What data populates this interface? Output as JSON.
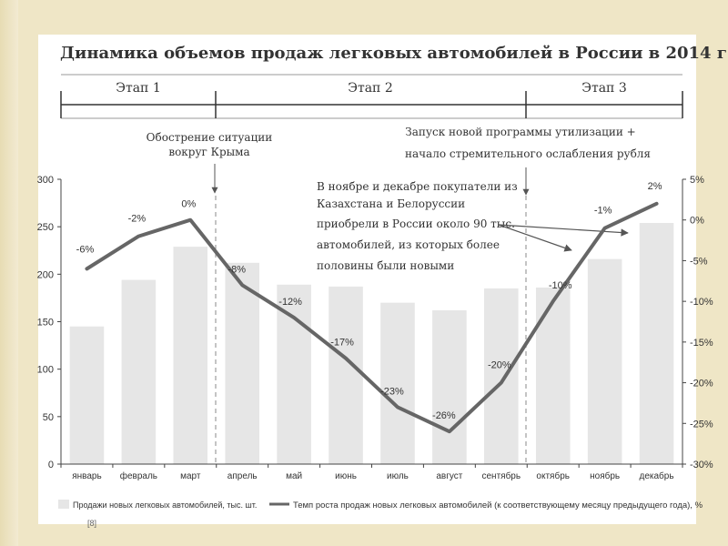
{
  "slide": {
    "title": "Динамика объемов продаж легковых автомобилей в России в 2014 г.",
    "footnote": "[8]"
  },
  "stages": [
    {
      "label": "Этап 1"
    },
    {
      "label": "Этап 2"
    },
    {
      "label": "Этап 3"
    }
  ],
  "annotations": {
    "crimea": [
      "Обострение ситуации",
      "вокруг Крыма"
    ],
    "utilization": [
      "Запуск новой программы утилизации +",
      "начало стремительного ослабления рубля"
    ],
    "kazakh": [
      "В ноябре и декабре покупатели из",
      "Казахстана и Белоруссии",
      "приобрели в России около 90 тыс.",
      "автомобилей, из которых более",
      "половины были новыми"
    ]
  },
  "chart_data": {
    "type": "bar+line",
    "title": "Динамика объемов продаж легковых автомобилей в России в 2014 г.",
    "categories": [
      "январь",
      "февраль",
      "март",
      "апрель",
      "май",
      "июнь",
      "июль",
      "август",
      "сентябрь",
      "октябрь",
      "ноябрь",
      "декабрь"
    ],
    "series": [
      {
        "name": "Продажи новых легковых автомобилей, тыс. шт.",
        "type": "bar",
        "axis": "left",
        "color": "#e6e6e6",
        "values": [
          145,
          194,
          229,
          212,
          189,
          187,
          170,
          162,
          185,
          186,
          216,
          254
        ]
      },
      {
        "name": "Темп роста продаж новых легковых автомобилей (к соответствующему месяцу предыдущего года), %",
        "type": "line",
        "axis": "right",
        "color": "#666666",
        "values": [
          -6,
          -2,
          0,
          -8,
          -12,
          -17,
          -23,
          -26,
          -20,
          -10,
          -1,
          2
        ],
        "labels": [
          "-6%",
          "-2%",
          "0%",
          "-8%",
          "-12%",
          "-17%",
          "-23%",
          "-26%",
          "-20%",
          "-10%",
          "-1%",
          "2%"
        ]
      }
    ],
    "y_left": {
      "min": 0,
      "max": 300,
      "ticks": [
        "0",
        "50",
        "100",
        "150",
        "200",
        "250",
        "300"
      ]
    },
    "y_right": {
      "min": -30,
      "max": 5,
      "ticks": [
        "-30%",
        "-25%",
        "-20%",
        "-15%",
        "-10%",
        "-5%",
        "0%",
        "5%"
      ]
    },
    "legend_position": "bottom",
    "grid": false
  }
}
